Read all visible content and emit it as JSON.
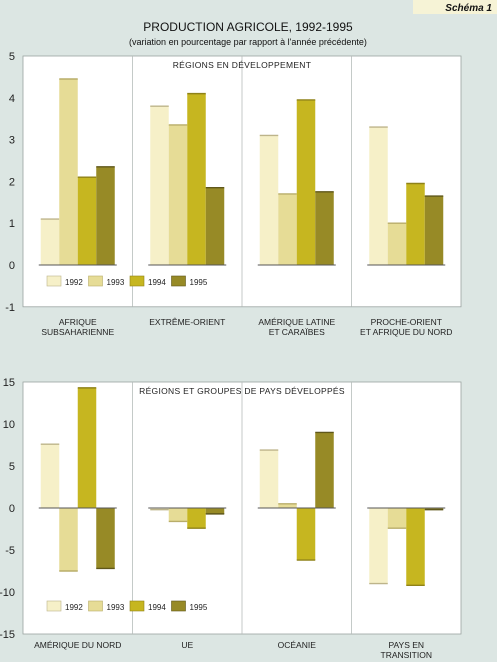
{
  "badge": "Schéma 1",
  "title": "PRODUCTION AGRICOLE, 1992-1995",
  "subtitle": "(variation en pourcentage par rapport à l'année précédente)",
  "colors": {
    "background": "#dce6e3",
    "panel": "#ffffff",
    "series": [
      "#f6f0c8",
      "#e6dc96",
      "#c6b620",
      "#978a26"
    ]
  },
  "chart_data": [
    {
      "type": "bar",
      "title": "RÉGIONS EN DÉVELOPPEMENT",
      "ylim": [
        -1,
        5
      ],
      "yticks": [
        5,
        4,
        3,
        2,
        1,
        0,
        -1
      ],
      "categories": [
        [
          "AFRIQUE",
          "SUBSAHARIENNE"
        ],
        [
          "EXTRÊME-ORIENT"
        ],
        [
          "AMÉRIQUE LATINE",
          "ET CARAÏBES"
        ],
        [
          "PROCHE-ORIENT",
          "ET AFRIQUE DU NORD"
        ]
      ],
      "series": [
        {
          "name": "1992",
          "values": [
            1.1,
            3.8,
            3.1,
            3.3
          ]
        },
        {
          "name": "1993",
          "values": [
            4.45,
            3.35,
            1.7,
            1.0
          ]
        },
        {
          "name": "1994",
          "values": [
            2.1,
            4.1,
            3.95,
            1.95
          ]
        },
        {
          "name": "1995",
          "values": [
            2.35,
            1.85,
            1.75,
            1.65
          ]
        }
      ],
      "legend": [
        "1992",
        "1993",
        "1994",
        "1995"
      ],
      "grid": false,
      "legend_position": "bottom"
    },
    {
      "type": "bar",
      "title": "RÉGIONS ET GROUPES DE PAYS DÉVELOPPÉS",
      "ylim": [
        -15,
        15
      ],
      "yticks": [
        15,
        10,
        5,
        0,
        -5,
        -10,
        -15
      ],
      "categories": [
        [
          "AMÉRIQUE DU NORD"
        ],
        [
          "UE"
        ],
        [
          "OCÉANIE"
        ],
        [
          "PAYS EN",
          "TRANSITION"
        ]
      ],
      "series": [
        {
          "name": "1992",
          "values": [
            7.6,
            -0.2,
            6.9,
            -9.0
          ]
        },
        {
          "name": "1993",
          "values": [
            -7.5,
            -1.6,
            0.5,
            -2.4
          ]
        },
        {
          "name": "1994",
          "values": [
            14.3,
            -2.4,
            -6.2,
            -9.2
          ]
        },
        {
          "name": "1995",
          "values": [
            -7.2,
            -0.7,
            9.0,
            -0.2
          ]
        }
      ],
      "legend": [
        "1992",
        "1993",
        "1994",
        "1995"
      ],
      "grid": false,
      "legend_position": "bottom"
    }
  ]
}
